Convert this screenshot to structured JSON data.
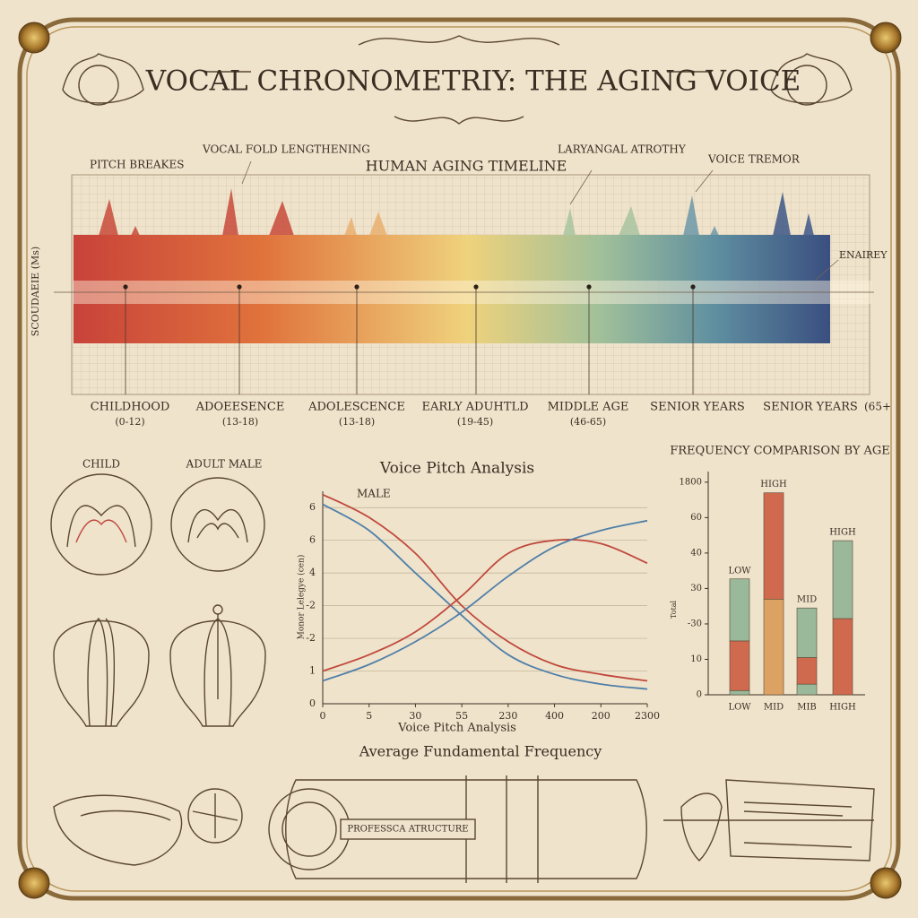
{
  "title": "VOCAL CHRONOMETRIY: THE AGING VOICE",
  "timeline": {
    "title": "HUMAN AGING TIMELINE",
    "annotations": [
      "PITCH BREAKES",
      "VOCAL FOLD LENGTHENING",
      "LARYANGAL ATROTHY",
      "VOICE TREMOR"
    ],
    "axis_label": "SCOUDAEIE (Ms)",
    "right_label": "ENAIREY",
    "stages": [
      {
        "name": "CHILDHOOD",
        "range": "(0-12)"
      },
      {
        "name": "ADOEESENCE",
        "range": "(13-18)"
      },
      {
        "name": "ADOLESCENCE",
        "range": "(13-18)"
      },
      {
        "name": "EARLY ADUHTLD",
        "range": "(19-45)"
      },
      {
        "name": "MIDDLE AGE",
        "range": "(46-65)"
      },
      {
        "name": "SENIOR YEARS"
      },
      {
        "name": "SENIOR YEARS",
        "range": "(65+"
      }
    ]
  },
  "illustrations": {
    "labels": [
      "CHILD",
      "ADULT MALE"
    ],
    "banner": "PROFESSCA ATRUCTURE"
  },
  "chart_data": [
    {
      "type": "line",
      "title": "Voice Pitch Analysis",
      "x_label": "Voice Pitch Analysis",
      "caption": "Average Fundamental Frequency",
      "y_label": "Monor Lelegye (cen)",
      "x": [
        0,
        1,
        2,
        3,
        4,
        5,
        6,
        7
      ],
      "xlim": [
        0,
        7
      ],
      "xticks": [
        0,
        {
          "value": 1,
          "label": "5"
        },
        {
          "value": 2,
          "label": "30"
        },
        {
          "value": 3,
          "label": "55"
        },
        {
          "value": 4,
          "label": "230"
        },
        {
          "value": 5,
          "label": "400"
        },
        {
          "value": 6,
          "label": "200"
        },
        {
          "value": 7,
          "label": "2300"
        }
      ],
      "ylim": [
        0,
        6.5
      ],
      "yticks": [
        0,
        1,
        {
          "value": 2,
          "label": "-2"
        },
        {
          "value": 3,
          "label": "-2"
        },
        4,
        {
          "value": 5,
          "label": "6"
        },
        6
      ],
      "grid": true,
      "series": [
        {
          "name": "MALE",
          "color": "#c0493c",
          "values": [
            6.4,
            5.7,
            4.6,
            3.0,
            1.9,
            1.2,
            0.9,
            0.7
          ]
        },
        {
          "color": "#4f7fa8",
          "values": [
            6.1,
            5.3,
            4.0,
            2.7,
            1.5,
            0.9,
            0.6,
            0.45
          ]
        },
        {
          "color": "#c0493c",
          "values": [
            1.0,
            1.5,
            2.2,
            3.3,
            4.6,
            5.0,
            4.9,
            4.3
          ]
        },
        {
          "color": "#4f7fa8",
          "values": [
            0.7,
            1.2,
            1.9,
            2.8,
            3.9,
            4.8,
            5.3,
            5.6
          ]
        }
      ]
    },
    {
      "type": "bar",
      "title": "FREQUENCY COMPARISON BY AGE",
      "y_label": "Total",
      "categories": [
        "LOW",
        "MID",
        "MIB",
        "HIGH"
      ],
      "bar_labels": [
        "LOW",
        "HIGH",
        "MID",
        "HIGH"
      ],
      "ylim": [
        0,
        6.3
      ],
      "yticks": [
        0,
        {
          "value": 1,
          "label": "10"
        },
        {
          "value": 2,
          "label": "-30"
        },
        {
          "value": 3,
          "label": "30"
        },
        {
          "value": 4,
          "label": "40"
        },
        {
          "value": 5,
          "label": "60"
        },
        {
          "value": 6,
          "label": "1800"
        }
      ],
      "stacks": [
        {
          "values": [
            0.12,
            1.4,
            1.75
          ],
          "colors": [
            "#9ab89a",
            "#d06a4e",
            "#9ab89a"
          ]
        },
        {
          "values": [
            2.7,
            3.0
          ],
          "colors": [
            "#dca264",
            "#d06a4e"
          ]
        },
        {
          "values": [
            0.3,
            0.75,
            1.4
          ],
          "colors": [
            "#9ab89a",
            "#d06a4e",
            "#9ab89a"
          ]
        },
        {
          "values": [
            2.15,
            2.2
          ],
          "colors": [
            "#d06a4e",
            "#9ab89a"
          ]
        }
      ]
    }
  ]
}
